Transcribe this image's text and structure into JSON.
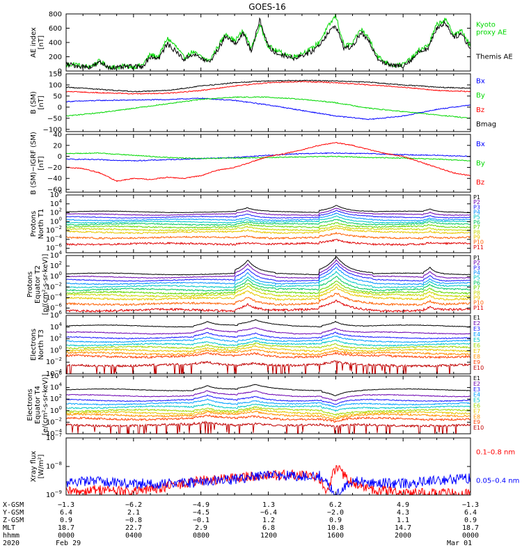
{
  "chart_data": {
    "title": "GOES-16",
    "type": "line",
    "x_range_hours": [
      0,
      24
    ],
    "panels": [
      {
        "id": "ae",
        "ylabel": [
          "AE index",
          "[nT]"
        ],
        "ylim": [
          0,
          800
        ],
        "scale": "linear",
        "yticks": [
          0,
          200,
          400,
          600,
          800
        ],
        "series": [
          {
            "name": "Kyoto proxy AE",
            "color": "#00d800",
            "x": [
              0,
              0.5,
              1,
              1.5,
              2,
              2.5,
              3,
              3.5,
              4,
              4.5,
              5,
              5.5,
              6,
              6.5,
              7,
              7.5,
              8,
              8.5,
              9,
              9.5,
              10,
              10.5,
              11,
              11.5,
              12,
              12.5,
              13,
              13.5,
              14,
              14.5,
              15,
              15.5,
              16,
              16.5,
              17,
              17.5,
              18,
              18.5,
              19,
              19.5,
              20,
              20.5,
              21,
              21.5,
              22,
              22.5,
              23,
              23.5,
              24
            ],
            "y": [
              80,
              100,
              60,
              70,
              140,
              60,
              50,
              70,
              60,
              80,
              230,
              200,
              460,
              350,
              180,
              270,
              200,
              140,
              340,
              530,
              420,
              560,
              320,
              640,
              350,
              280,
              240,
              200,
              250,
              300,
              400,
              600,
              780,
              350,
              380,
              590,
              450,
              200,
              120,
              80,
              90,
              180,
              300,
              360,
              650,
              720,
              520,
              560,
              340
            ]
          },
          {
            "name": "Themis AE",
            "color": "#000000",
            "x": [
              0,
              0.5,
              1,
              1.5,
              2,
              2.5,
              3,
              3.5,
              4,
              4.5,
              5,
              5.5,
              6,
              6.5,
              7,
              7.5,
              8,
              8.5,
              9,
              9.5,
              10,
              10.5,
              11,
              11.5,
              12,
              12.5,
              13,
              13.5,
              14,
              14.5,
              15,
              15.5,
              16,
              16.5,
              17,
              17.5,
              18,
              18.5,
              19,
              19.5,
              20,
              20.5,
              21,
              21.5,
              22,
              22.5,
              23,
              23.5,
              24
            ],
            "y": [
              90,
              80,
              60,
              60,
              120,
              60,
              40,
              60,
              60,
              60,
              200,
              180,
              380,
              280,
              160,
              240,
              180,
              120,
              300,
              500,
              380,
              520,
              280,
              720,
              340,
              240,
              220,
              180,
              220,
              260,
              360,
              520,
              640,
              320,
              340,
              540,
              400,
              180,
              100,
              70,
              80,
              160,
              280,
              320,
              600,
              680,
              480,
              520,
              300
            ]
          }
        ],
        "legend": [
          {
            "text": [
              "Kyoto",
              "proxy AE"
            ],
            "color": "#00d800"
          },
          {
            "text": [
              "Themis AE"
            ],
            "color": "#000000"
          }
        ]
      },
      {
        "id": "bsm",
        "ylabel": [
          "B (SM)",
          "[nT]"
        ],
        "ylim": [
          -110,
          150
        ],
        "scale": "linear",
        "yticks": [
          -100,
          -50,
          0,
          50,
          100,
          150
        ],
        "series": [
          {
            "name": "Bx",
            "color": "#0000ff",
            "x": [
              0,
              2,
              4,
              6,
              8,
              10,
              12,
              14,
              16,
              18,
              20,
              22,
              24
            ],
            "y": [
              25,
              30,
              32,
              34,
              40,
              30,
              10,
              -15,
              -40,
              -55,
              -40,
              -10,
              10
            ]
          },
          {
            "name": "By",
            "color": "#00d800",
            "x": [
              0,
              2,
              4,
              6,
              8,
              10,
              12,
              14,
              16,
              18,
              20,
              22,
              24
            ],
            "y": [
              -40,
              -25,
              -5,
              15,
              35,
              45,
              45,
              35,
              20,
              -5,
              -20,
              -35,
              -50
            ]
          },
          {
            "name": "Bz",
            "color": "#ff0000",
            "x": [
              0,
              2,
              4,
              6,
              8,
              10,
              12,
              14,
              16,
              18,
              20,
              22,
              24
            ],
            "y": [
              70,
              65,
              60,
              62,
              75,
              95,
              110,
              115,
              110,
              100,
              90,
              75,
              70
            ]
          },
          {
            "name": "Bmag",
            "color": "#000000",
            "x": [
              0,
              2,
              4,
              6,
              8,
              10,
              12,
              14,
              16,
              18,
              20,
              22,
              24
            ],
            "y": [
              90,
              80,
              70,
              75,
              95,
              110,
              118,
              120,
              118,
              112,
              100,
              90,
              85
            ]
          }
        ],
        "legend": [
          {
            "text": [
              "Bx"
            ],
            "color": "#0000ff"
          },
          {
            "text": [
              "By"
            ],
            "color": "#00d800"
          },
          {
            "text": [
              "Bz"
            ],
            "color": "#ff0000"
          },
          {
            "text": [
              "Bmag"
            ],
            "color": "#000000"
          }
        ]
      },
      {
        "id": "bigrf",
        "ylabel": [
          "B (SM)−IGRF (SM)",
          "[nT]"
        ],
        "ylim": [
          -65,
          40
        ],
        "scale": "linear",
        "yticks": [
          -60,
          -40,
          -20,
          0,
          20,
          40
        ],
        "series": [
          {
            "name": "Bx",
            "color": "#0000ff",
            "x": [
              0,
              2,
              4,
              6,
              8,
              10,
              12,
              14,
              16,
              18,
              20,
              22,
              24
            ],
            "y": [
              -5,
              -6,
              -8,
              -6,
              -4,
              -2,
              2,
              5,
              6,
              5,
              3,
              2,
              0
            ]
          },
          {
            "name": "By",
            "color": "#00d800",
            "x": [
              0,
              2,
              4,
              6,
              8,
              10,
              12,
              14,
              16,
              18,
              20,
              22,
              24
            ],
            "y": [
              5,
              6,
              2,
              -2,
              -4,
              -3,
              -2,
              -1,
              0,
              -2,
              -3,
              -5,
              -8
            ]
          },
          {
            "name": "Bz",
            "color": "#ff0000",
            "x": [
              0,
              1,
              2,
              3,
              4,
              5,
              6,
              7,
              8,
              9,
              10,
              11,
              12,
              13,
              14,
              15,
              16,
              17,
              18,
              19,
              20,
              21,
              22,
              23,
              24
            ],
            "y": [
              -20,
              -22,
              -30,
              -45,
              -40,
              -42,
              -38,
              -40,
              -35,
              -25,
              -20,
              -10,
              0,
              5,
              12,
              20,
              25,
              20,
              12,
              5,
              0,
              -10,
              -20,
              -30,
              -35
            ]
          }
        ],
        "legend": [
          {
            "text": [
              "Bx"
            ],
            "color": "#0000ff"
          },
          {
            "text": [
              "By"
            ],
            "color": "#00d800"
          },
          {
            "text": [
              "Bz"
            ],
            "color": "#ff0000"
          }
        ]
      },
      {
        "id": "pn",
        "ylabel": [
          "Protons",
          "North T1"
        ],
        "ylim": [
          -7,
          6
        ],
        "scale": "log",
        "yticks": [
          -6,
          -4,
          -2,
          0,
          2,
          4,
          6
        ],
        "series_levels": [
          2.2,
          1.6,
          1.0,
          0.4,
          -0.1,
          -0.6,
          -1.2,
          -1.8,
          -2.4,
          -3.6,
          -5.0
        ],
        "series_names": [
          "P1",
          "P2",
          "P3",
          "P4",
          "P5",
          "P6",
          "P7",
          "P8",
          "P9",
          "P10",
          "P11"
        ],
        "series_colors": [
          "#000000",
          "#6a00b0",
          "#1a1aff",
          "#0090ff",
          "#00c8c8",
          "#00c860",
          "#60d800",
          "#c8d800",
          "#e8c800",
          "#ff6000",
          "#e00000"
        ],
        "events": [
          {
            "x": 10.6,
            "amp": 0.8,
            "w": 0.5
          },
          {
            "x": 15.8,
            "amp": 1.6,
            "w": 0.8
          },
          {
            "x": 21.5,
            "amp": 0.6,
            "w": 0.3
          }
        ]
      },
      {
        "id": "pe",
        "ylabel": [
          "Protons",
          "Equator T2",
          "[p/(cm²-s-sr-keV)]"
        ],
        "ylim": [
          -7,
          4
        ],
        "scale": "log",
        "yticks": [
          -6,
          -4,
          -2,
          0,
          2,
          4
        ],
        "series_levels": [
          0.5,
          -0.1,
          -0.7,
          -1.3,
          -1.9,
          -2.5,
          -3.1,
          -3.6,
          -4.2,
          -5.2,
          -6.4
        ],
        "series_names": [
          "P1",
          "P2",
          "P3",
          "P4",
          "P5",
          "P6",
          "P7",
          "P8",
          "P9",
          "P10",
          "P11"
        ],
        "series_colors": [
          "#000000",
          "#6a00b0",
          "#1a1aff",
          "#0090ff",
          "#00c8c8",
          "#00c860",
          "#60d800",
          "#c8d800",
          "#e8c800",
          "#ff6000",
          "#e00000"
        ],
        "events": [
          {
            "x": 10.6,
            "amp": 2.5,
            "w": 0.6
          },
          {
            "x": 15.8,
            "amp": 3.5,
            "w": 0.8
          },
          {
            "x": 21.5,
            "amp": 1.2,
            "w": 0.3
          }
        ]
      },
      {
        "id": "en",
        "ylabel": [
          "Electrons",
          "North T3"
        ],
        "ylim": [
          -4,
          6
        ],
        "scale": "log",
        "yticks": [
          -4,
          -2,
          0,
          2,
          4,
          6
        ],
        "series_levels": [
          4.2,
          3.0,
          2.2,
          1.6,
          1.0,
          0.5,
          0.0,
          -0.5,
          -1.0,
          -2.5
        ],
        "series_names": [
          "E1",
          "E2",
          "E3",
          "E4",
          "E5",
          "E6",
          "E7",
          "E8",
          "E9",
          "E10"
        ],
        "series_colors": [
          "#000000",
          "#6a00b0",
          "#1a1aff",
          "#00a0ff",
          "#00c8c8",
          "#a0d800",
          "#e8c800",
          "#ff9000",
          "#ff4000",
          "#c00000"
        ],
        "events": [
          {
            "x": 8.2,
            "amp": 0.8,
            "w": 0.6
          },
          {
            "x": 11.0,
            "amp": 0.9,
            "w": 0.8
          },
          {
            "x": 15.8,
            "amp": 0.9,
            "w": 0.6
          }
        ]
      },
      {
        "id": "ee",
        "ylabel": [
          "Electrons",
          "Equator T4",
          "[e/(cm²-s-sr-keV)]"
        ],
        "ylim": [
          -4,
          6
        ],
        "scale": "log",
        "yticks": [
          -4,
          -2,
          0,
          2,
          4,
          6
        ],
        "series_levels": [
          3.6,
          2.6,
          1.8,
          1.2,
          0.6,
          0.0,
          -0.4,
          -0.8,
          -1.4,
          -2.5
        ],
        "series_names": [
          "E1",
          "E2",
          "E3",
          "E4",
          "E5",
          "E6",
          "E7",
          "E8",
          "E9",
          "E10"
        ],
        "series_colors": [
          "#000000",
          "#6a00b0",
          "#1a1aff",
          "#00a0ff",
          "#00c8c8",
          "#a0d800",
          "#e8c800",
          "#ff9000",
          "#ff4000",
          "#c00000"
        ],
        "events": [
          {
            "x": 8.2,
            "amp": 0.8,
            "w": 0.6
          },
          {
            "x": 11.0,
            "amp": 0.8,
            "w": 0.8
          },
          {
            "x": 15.8,
            "amp": -0.9,
            "w": 0.6
          }
        ]
      },
      {
        "id": "xray",
        "ylabel": [
          "Xray flux",
          "[W/m²]"
        ],
        "ylim": [
          -9,
          -7
        ],
        "scale": "log",
        "yticks": [
          -9,
          -8,
          -7
        ],
        "series": [
          {
            "name": "0.1-0.8 nm",
            "color": "#ff0000",
            "x": [
              0,
              2,
              4,
              6,
              8,
              10,
              12,
              14,
              15,
              15.5,
              16,
              17,
              18,
              20,
              22,
              24
            ],
            "y": [
              -8.9,
              -8.8,
              -8.9,
              -8.7,
              -8.5,
              -8.4,
              -8.3,
              -8.3,
              -8.4,
              -8.9,
              -8.0,
              -8.6,
              -8.8,
              -8.9,
              -8.95,
              -8.9
            ]
          },
          {
            "name": "0.05-0.4 nm",
            "color": "#0000ff",
            "x": [
              0,
              2,
              4,
              6,
              8,
              10,
              12,
              14,
              15,
              15.5,
              16,
              17,
              18,
              20,
              22,
              24
            ],
            "y": [
              -8.55,
              -8.5,
              -8.6,
              -8.6,
              -8.55,
              -8.45,
              -8.3,
              -8.35,
              -8.3,
              -8.6,
              -8.95,
              -8.5,
              -8.55,
              -8.6,
              -8.5,
              -8.4
            ]
          }
        ],
        "legend": [
          {
            "text": [
              "0.1–0.8 nm"
            ],
            "color": "#ff0000"
          },
          {
            "text": [
              "0.05–0.4 nm"
            ],
            "color": "#0000ff"
          }
        ]
      }
    ],
    "footer": {
      "rows": [
        {
          "label": "X-GSM",
          "values": [
            "−1.3",
            "−6.2",
            "−4.9",
            "1.3",
            "6.2",
            "4.9",
            "−1.3"
          ]
        },
        {
          "label": "Y-GSM",
          "values": [
            "6.4",
            "2.1",
            "−4.5",
            "−6.4",
            "−2.0",
            "4.3",
            "6.4"
          ]
        },
        {
          "label": "Z-GSM",
          "values": [
            "0.9",
            "−0.8",
            "−0.1",
            "1.2",
            "0.9",
            "1.1",
            "0.9"
          ]
        },
        {
          "label": "MLT",
          "values": [
            "18.7",
            "22.7",
            "2.9",
            "6.8",
            "10.8",
            "14.7",
            "18.7"
          ]
        },
        {
          "label": "hhmm",
          "values": [
            "0000",
            "0400",
            "0800",
            "1200",
            "1600",
            "2000",
            "0000"
          ]
        }
      ],
      "year": "2020",
      "date_start": "Feb 29",
      "date_end": "Mar 01"
    }
  }
}
